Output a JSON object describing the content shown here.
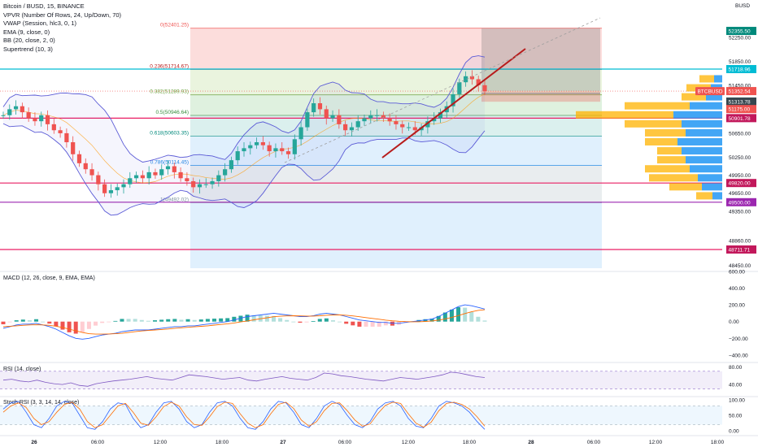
{
  "header": {
    "symbol": "Bitcoin / BUSD, 15, BINANCE",
    "indicators": [
      "VPVR (Number Of Rows, 24, Up/Down, 70)",
      "VWAP (Session, hlc3, 0, 1)",
      "EMA (9, close, 0)",
      "BB (20, close, 2, 0)",
      "Supertrend (10, 3)"
    ]
  },
  "currency": "BUSD",
  "colors": {
    "bull": "#26a69a",
    "bear": "#ef5350",
    "macd": "#2962ff",
    "signal": "#ff6d00",
    "fib_red": "#ef5350",
    "fib_green": "#4caf50",
    "fib_blue": "#2196f3",
    "hline_red": "#e91e63",
    "hline_cyan": "#00bcd4",
    "hline_purple": "#9c27b0",
    "trendline": "#b71c1c",
    "bb": "#5b5bd6",
    "vp_up": "#2196f3",
    "vp_down": "#ffb300"
  },
  "main_scale": {
    "min": 48400,
    "max": 52600,
    "ticks": [
      "52250.00",
      "51850.00",
      "51450.00",
      "50650.00",
      "50250.00",
      "49950.00",
      "49650.00",
      "49350.00",
      "48860.00",
      "48450.00"
    ]
  },
  "fib_levels": [
    {
      "label": "0(52401.25)",
      "value": 52401.25
    },
    {
      "label": "0.236(51714.67)",
      "value": 51714.67
    },
    {
      "label": "0.382(51289.93)",
      "value": 51289.93
    },
    {
      "label": "0.5(50946.64)",
      "value": 50946.64
    },
    {
      "label": "0.618(50603.35)",
      "value": 50603.35
    },
    {
      "label": "0.786(50114.45)",
      "value": 50114.45
    },
    {
      "label": "1(49492.02)",
      "value": 49492.02
    }
  ],
  "price_tags": [
    {
      "label": "52355.50",
      "value": 52355.5,
      "color": "#00897b"
    },
    {
      "label": "51718.96",
      "value": 51718.96,
      "color": "#00bcd4"
    },
    {
      "label": "BTCBUSD",
      "value": 51352.54,
      "color": "#ef5350"
    },
    {
      "label": "51352.54",
      "value": 51352.54,
      "color": "#ef5350"
    },
    {
      "label": "51313.78",
      "value": 51313.78,
      "color": "#37474f"
    },
    {
      "label": "51175.00",
      "value": 51175.0,
      "color": "#ef5350"
    },
    {
      "label": "50901.78",
      "value": 50901.78,
      "color": "#c2185b"
    },
    {
      "label": "49820.00",
      "value": 49820.0,
      "color": "#c2185b"
    },
    {
      "label": "49500.00",
      "value": 49500.0,
      "color": "#9c27b0"
    },
    {
      "label": "48711.71",
      "value": 48711.71,
      "color": "#c2185b"
    }
  ],
  "hlines": [
    {
      "value": 51718.96,
      "color": "#00bcd4"
    },
    {
      "value": 50901.78,
      "color": "#e91e63"
    },
    {
      "value": 49820.0,
      "color": "#e91e63"
    },
    {
      "value": 49500.0,
      "color": "#9c27b0"
    },
    {
      "value": 48711.71,
      "color": "#e91e63"
    }
  ],
  "macd_panel": {
    "title": "MACD (12, 26, close, 9, EMA, EMA)",
    "ticks": [
      "600.00",
      "400.00",
      "200.00",
      "0.00",
      "−200.00",
      "−400.00"
    ],
    "min": -450,
    "max": 600
  },
  "rsi_panel": {
    "title": "RSI (14, close)",
    "ticks": [
      "80.00",
      "40.00"
    ],
    "min": 20,
    "max": 90
  },
  "stoch_panel": {
    "title": "Stoch RSI (3, 3, 14, 14, close)",
    "ticks": [
      "100.00",
      "50.00",
      "0.00"
    ],
    "min": -10,
    "max": 110
  },
  "time_labels": [
    "26",
    "06:00",
    "12:00",
    "18:00",
    "27",
    "06:00",
    "12:00",
    "18:00",
    "28",
    "06:00",
    "12:00",
    "18:00"
  ],
  "chart_data": {
    "type": "candlestick",
    "title": "Bitcoin / BUSD, 15, BINANCE",
    "x_axis": [
      "26",
      "06:00",
      "12:00",
      "18:00",
      "27",
      "06:00",
      "12:00",
      "18:00",
      "28",
      "06:00",
      "12:00",
      "18:00"
    ],
    "price_range": [
      48400,
      52600
    ],
    "close_series": [
      50950,
      51050,
      51100,
      51000,
      50900,
      50850,
      50950,
      50800,
      50700,
      50650,
      50500,
      50300,
      50150,
      50050,
      49950,
      49800,
      49650,
      49700,
      49750,
      49800,
      49900,
      49950,
      49900,
      50000,
      49950,
      50050,
      50100,
      50000,
      49900,
      49850,
      49750,
      49800,
      49800,
      49850,
      49950,
      50050,
      50200,
      50350,
      50400,
      50450,
      50500,
      50450,
      50350,
      50400,
      50350,
      50300,
      50550,
      50750,
      51000,
      51150,
      51050,
      50900,
      50950,
      50800,
      50700,
      50750,
      50850,
      50900,
      50950,
      50950,
      50900,
      50850,
      50800,
      50750,
      50750,
      50700,
      50750,
      50850,
      50900,
      51000,
      51100,
      51300,
      51500,
      51600,
      51550,
      51450,
      51350
    ],
    "current_price": 51352.54,
    "macd_line": [
      -80,
      -60,
      -40,
      -30,
      -30,
      -20,
      -40,
      -60,
      -90,
      -130,
      -170,
      -200,
      -210,
      -200,
      -180,
      -160,
      -150,
      -140,
      -120,
      -110,
      -100,
      -100,
      -100,
      -90,
      -80,
      -70,
      -60,
      -60,
      -50,
      -50,
      -40,
      -30,
      -20,
      -10,
      0,
      20,
      40,
      60,
      70,
      80,
      90,
      100,
      90,
      80,
      70,
      60,
      60,
      70,
      90,
      100,
      90,
      80,
      60,
      40,
      20,
      10,
      0,
      -10,
      -10,
      -20,
      -20,
      -10,
      0,
      10,
      20,
      30,
      60,
      100,
      140,
      180,
      200,
      190,
      170,
      150
    ],
    "signal_line": [
      -60,
      -55,
      -50,
      -45,
      -40,
      -38,
      -40,
      -45,
      -55,
      -70,
      -90,
      -110,
      -130,
      -145,
      -150,
      -150,
      -148,
      -145,
      -140,
      -130,
      -120,
      -112,
      -106,
      -100,
      -94,
      -88,
      -80,
      -74,
      -68,
      -62,
      -56,
      -50,
      -42,
      -34,
      -26,
      -16,
      -4,
      8,
      22,
      34,
      46,
      58,
      64,
      68,
      70,
      68,
      66,
      66,
      70,
      76,
      80,
      80,
      76,
      68,
      58,
      48,
      38,
      28,
      18,
      10,
      4,
      0,
      -2,
      -2,
      2,
      8,
      18,
      32,
      50,
      72,
      96,
      118,
      134,
      142
    ],
    "rsi": [
      50,
      52,
      48,
      46,
      50,
      45,
      42,
      40,
      44,
      38,
      36,
      42,
      45,
      48,
      50,
      52,
      55,
      58,
      54,
      52,
      50,
      56,
      62,
      60,
      58,
      55,
      52,
      54,
      56,
      50,
      48,
      52,
      55,
      58,
      54,
      52,
      50,
      56,
      66,
      64,
      60,
      58,
      55,
      52,
      50,
      48,
      52,
      56,
      54,
      52,
      55,
      58,
      62,
      68,
      66,
      62,
      58,
      56
    ],
    "stoch_k": [
      70,
      90,
      95,
      60,
      20,
      10,
      40,
      80,
      95,
      90,
      50,
      10,
      5,
      30,
      70,
      90,
      85,
      40,
      10,
      20,
      60,
      90,
      95,
      70,
      30,
      10,
      20,
      60,
      90,
      95,
      80,
      40,
      10,
      5,
      30,
      70,
      95,
      90,
      60,
      20,
      10,
      40,
      80,
      95,
      85,
      50,
      20,
      10,
      30,
      70,
      90,
      95,
      80,
      40,
      15,
      10,
      40,
      80,
      95,
      90,
      80,
      60,
      30,
      5
    ],
    "stoch_d": [
      60,
      80,
      90,
      75,
      40,
      20,
      30,
      60,
      85,
      92,
      70,
      30,
      10,
      20,
      50,
      80,
      88,
      60,
      25,
      18,
      45,
      78,
      92,
      80,
      45,
      20,
      18,
      45,
      78,
      92,
      88,
      55,
      25,
      10,
      20,
      55,
      85,
      92,
      72,
      35,
      15,
      30,
      65,
      88,
      90,
      65,
      35,
      15,
      22,
      55,
      82,
      92,
      88,
      55,
      25,
      12,
      28,
      65,
      88,
      92,
      85,
      70,
      45,
      15
    ]
  }
}
